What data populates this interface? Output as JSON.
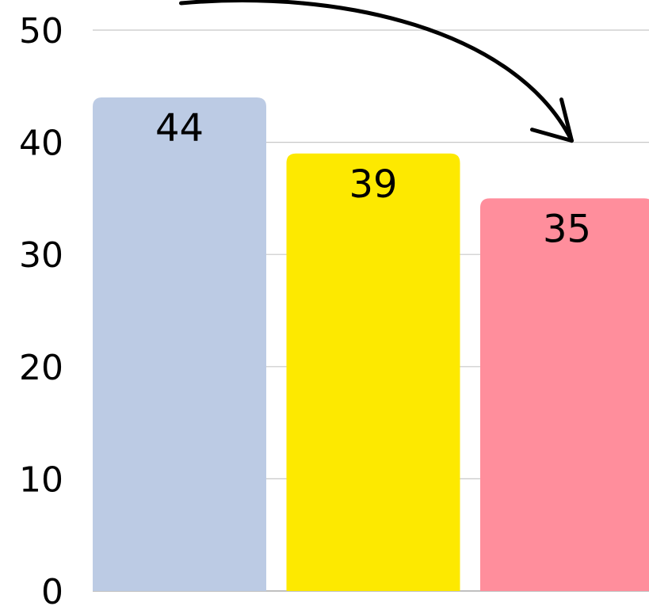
{
  "chart_data": {
    "type": "bar",
    "categories": [
      "",
      "",
      ""
    ],
    "values": [
      44,
      39,
      35
    ],
    "data_labels": [
      "44",
      "39",
      "35"
    ],
    "colors": [
      "#bccbe4",
      "#fde900",
      "#ff8e9c"
    ],
    "ylim": [
      0,
      50
    ],
    "yticks": [
      0,
      10,
      20,
      30,
      40,
      50
    ],
    "ytick_labels": [
      "0",
      "10",
      "20",
      "30",
      "40",
      "50"
    ],
    "grid": true,
    "title": "",
    "xlabel": "",
    "ylabel": "",
    "annotations": [
      {
        "type": "curved-arrow",
        "from_category": 0,
        "to_category": 2,
        "direction": "right-down"
      }
    ]
  }
}
